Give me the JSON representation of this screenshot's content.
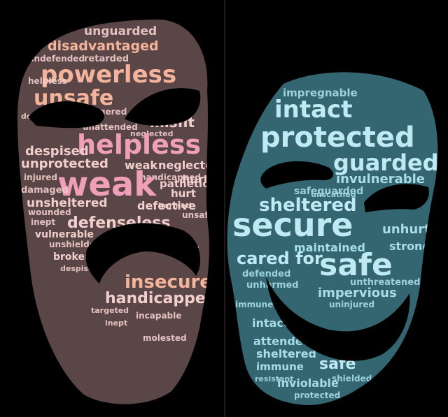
{
  "scene": {
    "background": "#000000",
    "divider_color": "#1c1c1c",
    "sad_mask_color": "#5a4646",
    "happy_mask_color": "#346672"
  },
  "sad_mask": {
    "words": [
      {
        "text": "unguarded"
      },
      {
        "text": "disadvantaged"
      },
      {
        "text": "undefended"
      },
      {
        "text": "retarded"
      },
      {
        "text": "powerless"
      },
      {
        "text": "unsafe"
      },
      {
        "text": "defenseless"
      },
      {
        "text": "helpless"
      },
      {
        "text": "endangered"
      },
      {
        "text": "misfit"
      },
      {
        "text": "unattended"
      },
      {
        "text": "neglected"
      },
      {
        "text": "helpless"
      },
      {
        "text": "despised"
      },
      {
        "text": "unprotected"
      },
      {
        "text": "weak"
      },
      {
        "text": "neglected"
      },
      {
        "text": "handicapped"
      },
      {
        "text": "injured"
      },
      {
        "text": "hurt"
      },
      {
        "text": "weak"
      },
      {
        "text": "pathetic"
      },
      {
        "text": "damaged"
      },
      {
        "text": "unsheltered"
      },
      {
        "text": "hurt"
      },
      {
        "text": "harmed"
      },
      {
        "text": "wounded"
      },
      {
        "text": "defective"
      },
      {
        "text": "unsafe"
      },
      {
        "text": "inept"
      },
      {
        "text": "defenseless"
      },
      {
        "text": "vulnerable"
      },
      {
        "text": "unshielded"
      },
      {
        "text": "broken"
      },
      {
        "text": "misfit"
      },
      {
        "text": "despised"
      },
      {
        "text": "insecure"
      },
      {
        "text": "handicapped"
      },
      {
        "text": "targeted"
      },
      {
        "text": "incapable"
      },
      {
        "text": "inept"
      },
      {
        "text": "molested"
      }
    ]
  },
  "happy_mask": {
    "words": [
      {
        "text": "impregnable"
      },
      {
        "text": "intact"
      },
      {
        "text": "protected"
      },
      {
        "text": "guarded"
      },
      {
        "text": "invulnerable"
      },
      {
        "text": "safeguarded"
      },
      {
        "text": "sheltered"
      },
      {
        "text": "secure"
      },
      {
        "text": "unhurt"
      },
      {
        "text": "maintained"
      },
      {
        "text": "strong"
      },
      {
        "text": "cared for"
      },
      {
        "text": "safe"
      },
      {
        "text": "defended"
      },
      {
        "text": "unharmed"
      },
      {
        "text": "impervious"
      },
      {
        "text": "unthreatened"
      },
      {
        "text": "immune"
      },
      {
        "text": "uninjured"
      },
      {
        "text": "intact"
      },
      {
        "text": "attended"
      },
      {
        "text": "tended"
      },
      {
        "text": "sheltered"
      },
      {
        "text": "safe"
      },
      {
        "text": "immune"
      },
      {
        "text": "inviolable"
      },
      {
        "text": "protected"
      },
      {
        "text": "resistant"
      },
      {
        "text": "shielded"
      },
      {
        "text": "unscathed"
      }
    ]
  }
}
